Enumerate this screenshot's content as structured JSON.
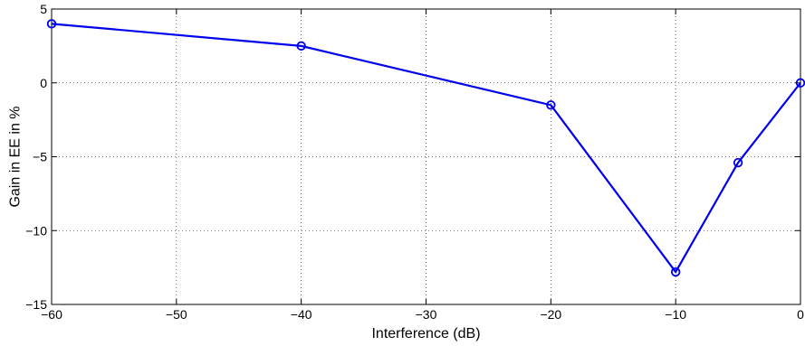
{
  "chart_data": {
    "type": "line",
    "title": "",
    "xlabel": "Interference (dB)",
    "ylabel": "Gain in EE in %",
    "xlim": [
      -60,
      0
    ],
    "ylim": [
      -15,
      5
    ],
    "xticks": [
      -60,
      -50,
      -40,
      -30,
      -20,
      -10,
      0
    ],
    "yticks": [
      -15,
      -10,
      -5,
      0,
      5
    ],
    "xtick_labels": [
      "−60",
      "−50",
      "−40",
      "−30",
      "−20",
      "−10",
      "0"
    ],
    "ytick_labels": [
      "−15",
      "−10",
      "−5",
      "0",
      "5"
    ],
    "grid": true,
    "legend": "none",
    "series": [
      {
        "x": [
          -60,
          -40,
          -20,
          -10,
          -5,
          0
        ],
        "y": [
          4.0,
          2.5,
          -1.5,
          -12.8,
          -5.4,
          0.0
        ],
        "color": "#0000ee",
        "marker": "circle"
      }
    ]
  }
}
